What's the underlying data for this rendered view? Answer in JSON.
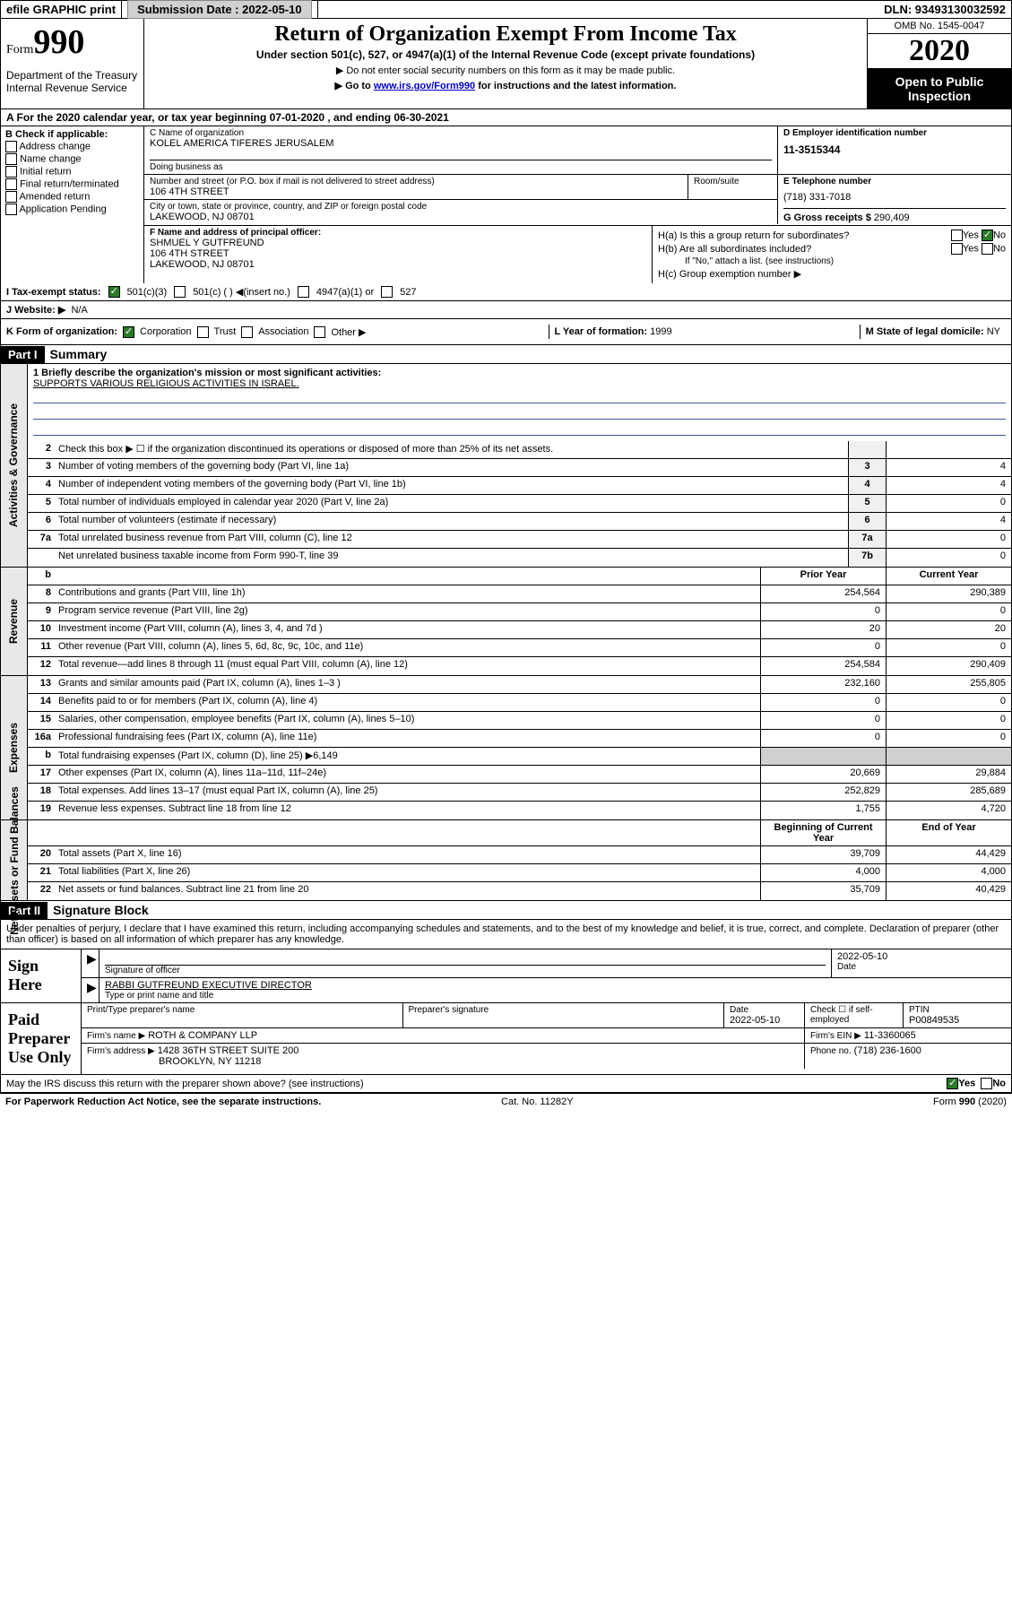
{
  "topbar": {
    "efile": "efile GRAPHIC print",
    "submission_label": "Submission Date : 2022-05-10",
    "dln": "DLN: 93493130032592"
  },
  "header": {
    "form_word": "Form",
    "form_num": "990",
    "dept": "Department of the Treasury Internal Revenue Service",
    "title": "Return of Organization Exempt From Income Tax",
    "sub": "Under section 501(c), 527, or 4947(a)(1) of the Internal Revenue Code (except private foundations)",
    "note1": "▶ Do not enter social security numbers on this form as it may be made public.",
    "note2_pre": "▶ Go to ",
    "note2_link": "www.irs.gov/Form990",
    "note2_post": " for instructions and the latest information.",
    "omb": "OMB No. 1545-0047",
    "year": "2020",
    "inspection": "Open to Public Inspection"
  },
  "row_a": "A For the 2020 calendar year, or tax year beginning 07-01-2020   , and ending 06-30-2021",
  "col_b": {
    "hdr": "B Check if applicable:",
    "items": [
      "Address change",
      "Name change",
      "Initial return",
      "Final return/terminated",
      "Amended return",
      "Application Pending"
    ]
  },
  "c": {
    "label_name": "C Name of organization",
    "org": "KOLEL AMERICA TIFERES JERUSALEM",
    "dba_label": "Doing business as",
    "dba": "",
    "street_label": "Number and street (or P.O. box if mail is not delivered to street address)",
    "room_label": "Room/suite",
    "street": "106 4TH STREET",
    "city_label": "City or town, state or province, country, and ZIP or foreign postal code",
    "city": "LAKEWOOD, NJ  08701"
  },
  "d": {
    "label": "D Employer identification number",
    "ein": "11-3515344"
  },
  "e": {
    "label": "E Telephone number",
    "phone": "(718) 331-7018"
  },
  "g": {
    "label": "G Gross receipts $",
    "val": "290,409"
  },
  "f": {
    "label": "F Name and address of principal officer:",
    "name": "SHMUEL Y GUTFREUND",
    "street": "106 4TH STREET",
    "city": "LAKEWOOD, NJ  08701"
  },
  "h": {
    "a": "H(a)  Is this a group return for subordinates?",
    "b": "H(b)  Are all subordinates included?",
    "b_note": "If \"No,\" attach a list. (see instructions)",
    "c": "H(c)  Group exemption number ▶"
  },
  "i": {
    "label": "I   Tax-exempt status:",
    "o1": "501(c)(3)",
    "o2": "501(c) (  ) ◀(insert no.)",
    "o3": "4947(a)(1) or",
    "o4": "527"
  },
  "j": {
    "label": "J   Website: ▶",
    "val": "N/A"
  },
  "k": {
    "label": "K Form of organization:",
    "opts": [
      "Corporation",
      "Trust",
      "Association",
      "Other ▶"
    ],
    "l_label": "L Year of formation:",
    "l_val": "1999",
    "m_label": "M State of legal domicile:",
    "m_val": "NY"
  },
  "part1": {
    "hdr": "Part I",
    "title": "Summary"
  },
  "mission": {
    "q": "1   Briefly describe the organization's mission or most significant activities:",
    "text": "SUPPORTS VARIOUS RELIGIOUS ACTIVITIES IN ISRAEL."
  },
  "gov_rows": [
    {
      "n": "2",
      "t": "Check this box ▶ ☐  if the organization discontinued its operations or disposed of more than 25% of its net assets.",
      "nn": "",
      "v": ""
    },
    {
      "n": "3",
      "t": "Number of voting members of the governing body (Part VI, line 1a)",
      "nn": "3",
      "v": "4"
    },
    {
      "n": "4",
      "t": "Number of independent voting members of the governing body (Part VI, line 1b)",
      "nn": "4",
      "v": "4"
    },
    {
      "n": "5",
      "t": "Total number of individuals employed in calendar year 2020 (Part V, line 2a)",
      "nn": "5",
      "v": "0"
    },
    {
      "n": "6",
      "t": "Total number of volunteers (estimate if necessary)",
      "nn": "6",
      "v": "4"
    },
    {
      "n": "7a",
      "t": "Total unrelated business revenue from Part VIII, column (C), line 12",
      "nn": "7a",
      "v": "0"
    },
    {
      "n": "",
      "t": "Net unrelated business taxable income from Form 990-T, line 39",
      "nn": "7b",
      "v": "0"
    }
  ],
  "rev_hdr": {
    "b": "b",
    "py": "Prior Year",
    "cy": "Current Year"
  },
  "rev_rows": [
    {
      "n": "8",
      "t": "Contributions and grants (Part VIII, line 1h)",
      "py": "254,564",
      "cy": "290,389"
    },
    {
      "n": "9",
      "t": "Program service revenue (Part VIII, line 2g)",
      "py": "0",
      "cy": "0"
    },
    {
      "n": "10",
      "t": "Investment income (Part VIII, column (A), lines 3, 4, and 7d )",
      "py": "20",
      "cy": "20"
    },
    {
      "n": "11",
      "t": "Other revenue (Part VIII, column (A), lines 5, 6d, 8c, 9c, 10c, and 11e)",
      "py": "0",
      "cy": "0"
    },
    {
      "n": "12",
      "t": "Total revenue—add lines 8 through 11 (must equal Part VIII, column (A), line 12)",
      "py": "254,584",
      "cy": "290,409"
    }
  ],
  "exp_rows": [
    {
      "n": "13",
      "t": "Grants and similar amounts paid (Part IX, column (A), lines 1–3 )",
      "py": "232,160",
      "cy": "255,805"
    },
    {
      "n": "14",
      "t": "Benefits paid to or for members (Part IX, column (A), line 4)",
      "py": "0",
      "cy": "0"
    },
    {
      "n": "15",
      "t": "Salaries, other compensation, employee benefits (Part IX, column (A), lines 5–10)",
      "py": "0",
      "cy": "0"
    },
    {
      "n": "16a",
      "t": "Professional fundraising fees (Part IX, column (A), line 11e)",
      "py": "0",
      "cy": "0"
    },
    {
      "n": "b",
      "t": "Total fundraising expenses (Part IX, column (D), line 25) ▶6,149",
      "py": "",
      "cy": ""
    },
    {
      "n": "17",
      "t": "Other expenses (Part IX, column (A), lines 11a–11d, 11f–24e)",
      "py": "20,669",
      "cy": "29,884"
    },
    {
      "n": "18",
      "t": "Total expenses. Add lines 13–17 (must equal Part IX, column (A), line 25)",
      "py": "252,829",
      "cy": "285,689"
    },
    {
      "n": "19",
      "t": "Revenue less expenses. Subtract line 18 from line 12",
      "py": "1,755",
      "cy": "4,720"
    }
  ],
  "net_hdr": {
    "py": "Beginning of Current Year",
    "cy": "End of Year"
  },
  "net_rows": [
    {
      "n": "20",
      "t": "Total assets (Part X, line 16)",
      "py": "39,709",
      "cy": "44,429"
    },
    {
      "n": "21",
      "t": "Total liabilities (Part X, line 26)",
      "py": "4,000",
      "cy": "4,000"
    },
    {
      "n": "22",
      "t": "Net assets or fund balances. Subtract line 21 from line 20",
      "py": "35,709",
      "cy": "40,429"
    }
  ],
  "part2": {
    "hdr": "Part II",
    "title": "Signature Block"
  },
  "penalty": "Under penalties of perjury, I declare that I have examined this return, including accompanying schedules and statements, and to the best of my knowledge and belief, it is true, correct, and complete. Declaration of preparer (other than officer) is based on all information of which preparer has any knowledge.",
  "sign": {
    "label": "Sign Here",
    "sig_label": "Signature of officer",
    "date": "2022-05-10",
    "date_label": "Date",
    "name": "RABBI GUTFREUND  EXECUTIVE DIRECTOR",
    "name_label": "Type or print name and title"
  },
  "preparer": {
    "label": "Paid Preparer Use Only",
    "h1": "Print/Type preparer's name",
    "h2": "Preparer's signature",
    "h3": "Date",
    "date": "2022-05-10",
    "h4": "Check ☐ if self-employed",
    "h5": "PTIN",
    "ptin": "P00849535",
    "firm_name_label": "Firm's name    ▶",
    "firm_name": "ROTH & COMPANY LLP",
    "firm_ein_label": "Firm's EIN ▶",
    "firm_ein": "11-3360065",
    "firm_addr_label": "Firm's address ▶",
    "firm_addr1": "1428 36TH STREET SUITE 200",
    "firm_addr2": "BROOKLYN, NY  11218",
    "phone_label": "Phone no.",
    "phone": "(718) 236-1600"
  },
  "discuss": "May the IRS discuss this return with the preparer shown above? (see instructions)",
  "footer": {
    "l": "For Paperwork Reduction Act Notice, see the separate instructions.",
    "m": "Cat. No. 11282Y",
    "r": "Form 990 (2020)"
  },
  "labels": {
    "yes": "Yes",
    "no": "No"
  },
  "vlabels": {
    "gov": "Activities & Governance",
    "rev": "Revenue",
    "exp": "Expenses",
    "net": "Net Assets or Fund Balances"
  },
  "colors": {
    "black": "#000000",
    "link": "#0000cc",
    "green": "#2a7a2a",
    "grey_bg": "#e8e8e8"
  }
}
